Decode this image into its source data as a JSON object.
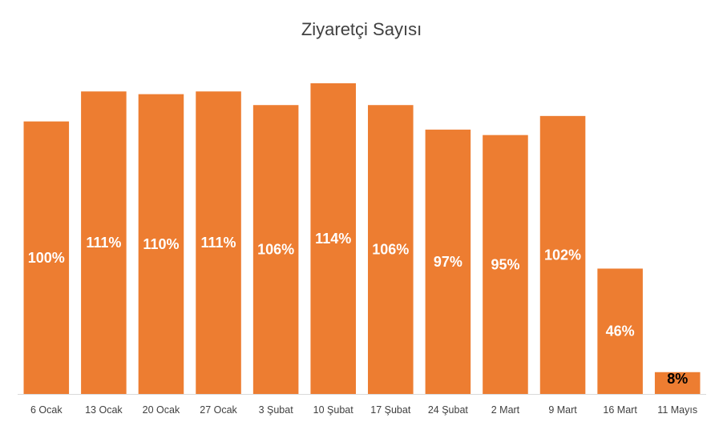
{
  "chart_data": {
    "type": "bar",
    "title": "Ziyaretçi Sayısı",
    "xlabel": "",
    "ylabel": "",
    "categories": [
      "6 Ocak",
      "13 Ocak",
      "20 Ocak",
      "27 Ocak",
      "3 Şubat",
      "10 Şubat",
      "17 Şubat",
      "24 Şubat",
      "2 Mart",
      "9 Mart",
      "16 Mart",
      "11 Mayıs"
    ],
    "values": [
      100,
      111,
      110,
      111,
      106,
      114,
      106,
      97,
      95,
      102,
      46,
      8
    ],
    "data_labels": [
      "100%",
      "111%",
      "110%",
      "111%",
      "106%",
      "114%",
      "106%",
      "97%",
      "95%",
      "102%",
      "46%",
      "8%"
    ],
    "ylim": [
      0,
      114
    ],
    "grid": false,
    "legend": "none",
    "bar_color": "#ED7D31",
    "label_color_inside": "#FFFFFF",
    "label_color_small": "#000000",
    "axis_color": "#D9D9D9",
    "text_color": "#404040"
  }
}
